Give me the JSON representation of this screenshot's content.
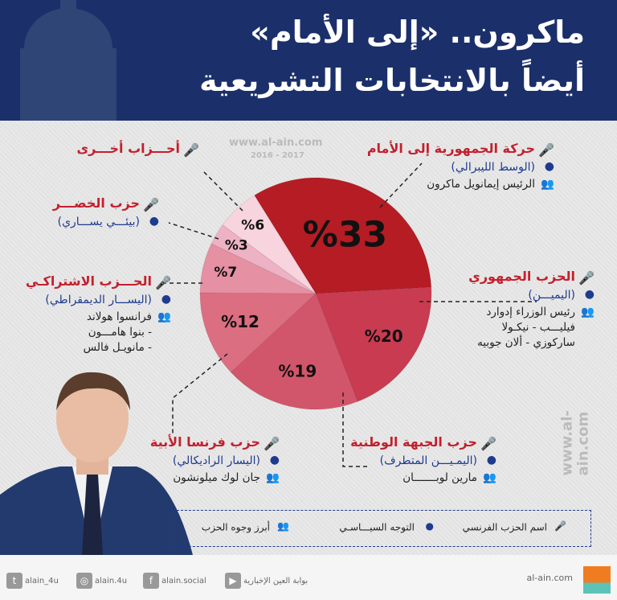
{
  "header": {
    "title_line1": "ماكرون.. «إلى الأمام»",
    "title_line2": "أيضاً بالانتخابات التشريعية"
  },
  "watermark": {
    "site": "www.al-ain.com",
    "years": "2016 - 2017"
  },
  "chart_data": {
    "type": "pie",
    "title": "",
    "values": [
      33,
      20,
      19,
      12,
      7,
      3,
      6
    ],
    "labels": [
      "%33",
      "%20",
      "%19",
      "%12",
      "%7",
      "%3",
      "%6"
    ],
    "categories": [
      "حركة الجمهورية إلى الأمام",
      "الحزب الجمهوري",
      "حزب الجبهة الوطنية",
      "حزب فرنسا الأبية",
      "الحزب الاشتراكي",
      "حزب الخضر",
      "أحزاب أخرى"
    ],
    "colors": [
      "#b51c24",
      "#c93b50",
      "#d2566b",
      "#dc6e82",
      "#e590a3",
      "#edb2c3",
      "#f8d4df"
    ]
  },
  "parties": {
    "enmarche": {
      "name": "حركة الجمهورية إلى الأمام",
      "ideology": "(الوسط الليبرالي)",
      "people": [
        "الرئيس إيمانويل ماكرون"
      ]
    },
    "republicans": {
      "name": "الحزب الجمهوري",
      "ideology": "(اليميـــن)",
      "people": [
        "رئيس الوزراء إدوارد",
        "فيليـــب - نيكـولا",
        "ساركوزي - ألان جوبيه"
      ]
    },
    "fn": {
      "name": "حزب الجبهة الوطنية",
      "ideology": "(اليمـيـــن المتطرف)",
      "people": [
        "مارين لوبـــــــان"
      ]
    },
    "lfi": {
      "name": "حزب فرنسا الأبية",
      "ideology": "(اليسار الراديكالي)",
      "people": [
        "جان لوك ميلونشون"
      ]
    },
    "ps": {
      "name": "الحـــزب الاشتراكـي",
      "ideology": "(اليســـار الديمقراطي)",
      "people": [
        "فرانسوا هولاند",
        "- بنوا هامـــون",
        "- مانويـل فالس"
      ]
    },
    "greens": {
      "name": "حزب الخضـــر",
      "ideology": "(بيئـــي يســـاري)"
    },
    "others": {
      "name": "أحـــزاب أخـــرى"
    }
  },
  "legend": {
    "party": "اسم الحزب الفرنسي",
    "ideology": "التوجه السيـــاسـي",
    "people": "أبرز وجوه الحزب"
  },
  "footer": {
    "site": "al-ain.com",
    "youtube": "بوابة العين الإخبارية",
    "facebook": "alain.social",
    "instagram": "alain.4u",
    "twitter": "alain_4u",
    "logo": "العين"
  }
}
